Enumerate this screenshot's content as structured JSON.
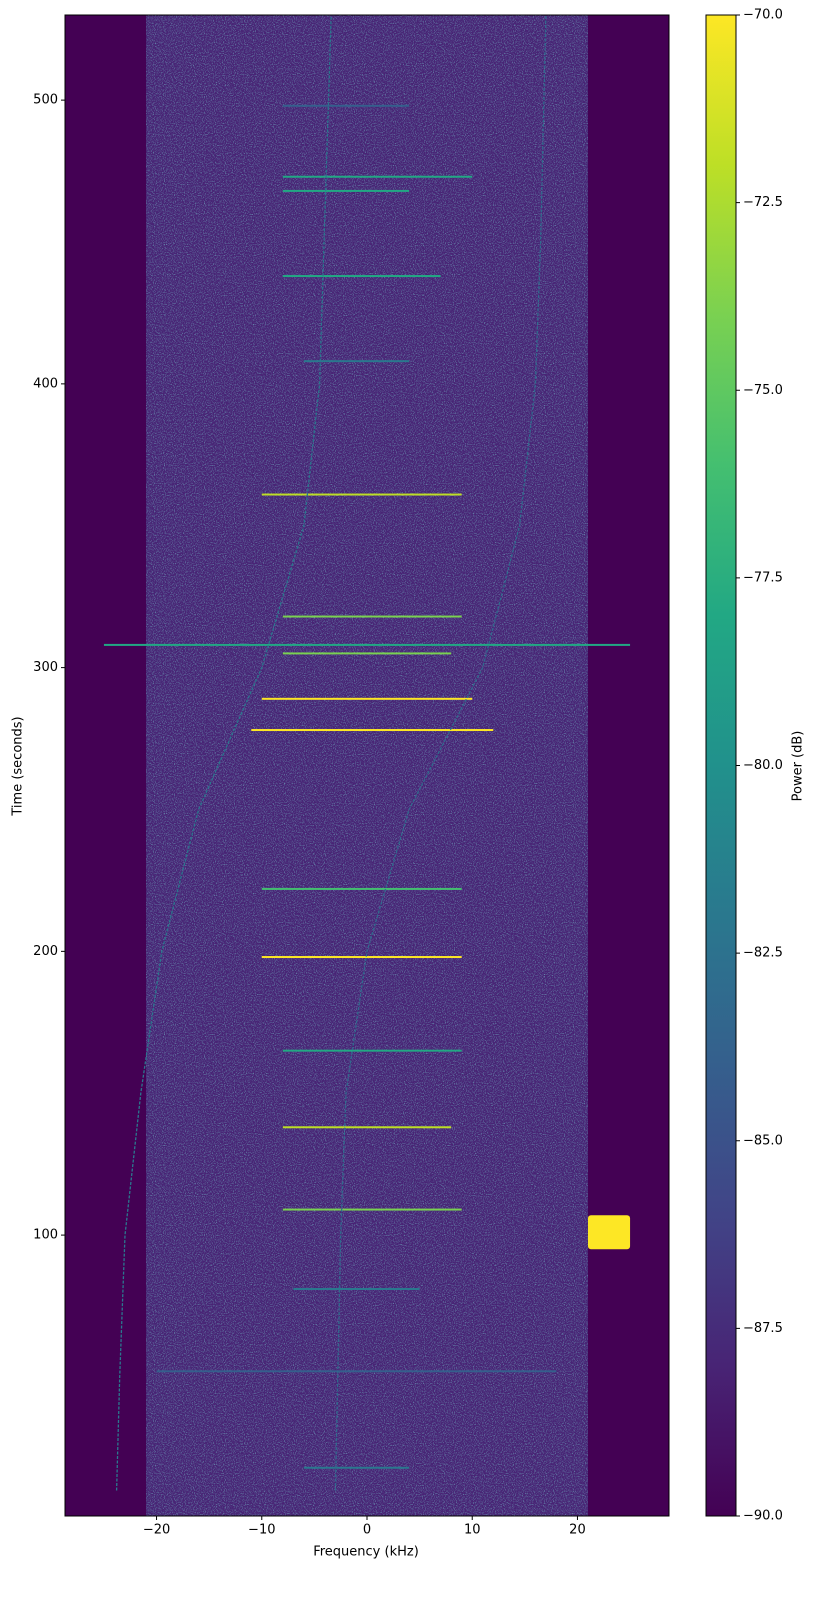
{
  "chart_data": {
    "type": "spectrogram",
    "xlabel": "Frequency (kHz)",
    "ylabel": "Time (seconds)",
    "colorbar_label": "Power (dB)",
    "xlim": [
      -28.7,
      28.7
    ],
    "ylim": [
      1,
      530
    ],
    "xticks": [
      {
        "value": -20,
        "label": "−20"
      },
      {
        "value": -10,
        "label": "−10"
      },
      0,
      10,
      20
    ],
    "yticks": [
      100,
      200,
      300,
      400,
      500
    ],
    "clim": [
      -90,
      -70
    ],
    "cticks": [
      {
        "value": -90,
        "label": "−90.0"
      },
      {
        "value": -87.5,
        "label": "−87.5"
      },
      {
        "value": -85,
        "label": "−85.0"
      },
      {
        "value": -82.5,
        "label": "−82.5"
      },
      {
        "value": -80,
        "label": "−80.0"
      },
      {
        "value": -77.5,
        "label": "−77.5"
      },
      {
        "value": -75,
        "label": "−75.0"
      },
      {
        "value": -72.5,
        "label": "−72.5"
      },
      {
        "value": -70,
        "label": "−70.0"
      }
    ],
    "noise_band": {
      "f0": -21,
      "f1": 21,
      "power": -88
    },
    "traces": [
      {
        "freq": [
          -23.8,
          -23.5,
          -23,
          -21.5,
          -19.5,
          -16,
          -10,
          -6,
          -4.5,
          -3.4
        ],
        "time": [
          10,
          50,
          100,
          150,
          200,
          250,
          300,
          350,
          400,
          530
        ],
        "power": -82
      },
      {
        "freq": [
          -3,
          -2.5,
          -2,
          0,
          4,
          11,
          14.5,
          16,
          16.5,
          17
        ],
        "time": [
          10,
          100,
          150,
          200,
          250,
          300,
          350,
          400,
          450,
          530
        ],
        "power": -83
      }
    ],
    "streaks": [
      {
        "time": 498,
        "f0": -8,
        "f1": 4,
        "power": -84
      },
      {
        "time": 473,
        "f0": -8,
        "f1": 10,
        "power": -78
      },
      {
        "time": 468,
        "f0": -8,
        "f1": 4,
        "power": -78
      },
      {
        "time": 438,
        "f0": -8,
        "f1": 7,
        "power": -78
      },
      {
        "time": 408,
        "f0": -6,
        "f1": 4,
        "power": -82
      },
      {
        "time": 361,
        "f0": -10,
        "f1": 9,
        "power": -72
      },
      {
        "time": 318,
        "f0": -8,
        "f1": 9,
        "power": -74
      },
      {
        "time": 308,
        "f0": -25,
        "f1": 25,
        "power": -78
      },
      {
        "time": 305,
        "f0": -8,
        "f1": 8,
        "power": -74
      },
      {
        "time": 289,
        "f0": -10,
        "f1": 10,
        "power": -70
      },
      {
        "time": 278,
        "f0": -11,
        "f1": 12,
        "power": -70
      },
      {
        "time": 222,
        "f0": -10,
        "f1": 9,
        "power": -76
      },
      {
        "time": 198,
        "f0": -10,
        "f1": 9,
        "power": -70
      },
      {
        "time": 165,
        "f0": -8,
        "f1": 9,
        "power": -78
      },
      {
        "time": 138,
        "f0": -8,
        "f1": 8,
        "power": -72
      },
      {
        "time": 109,
        "f0": -8,
        "f1": 9,
        "power": -74
      },
      {
        "time": 81,
        "f0": -7,
        "f1": 5,
        "power": -82
      },
      {
        "time": 52,
        "f0": -20,
        "f1": 18,
        "power": -84
      },
      {
        "time": 18,
        "f0": -6,
        "f1": 4,
        "power": -82
      }
    ],
    "bursts": [
      {
        "t0": 95,
        "t1": 107,
        "f0": 21,
        "f1": 25,
        "power": -70
      }
    ]
  }
}
